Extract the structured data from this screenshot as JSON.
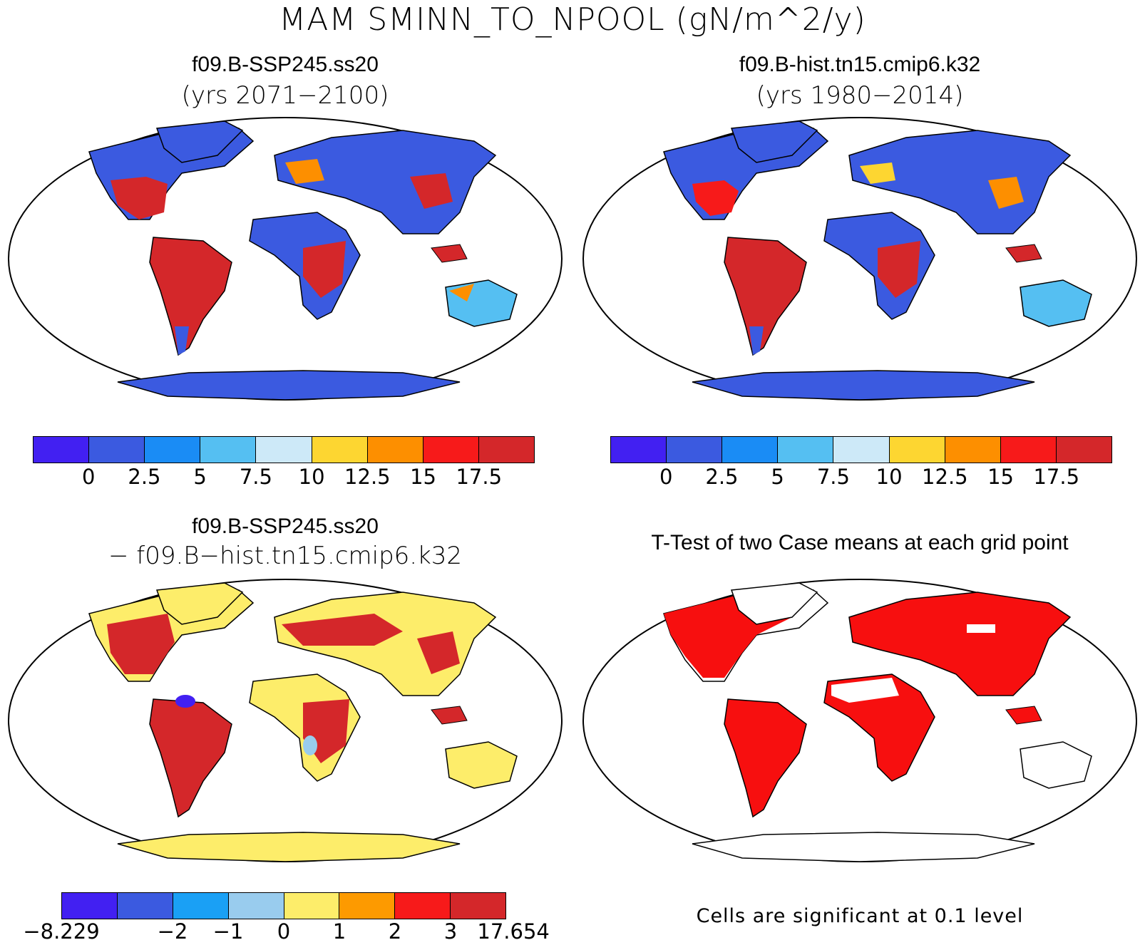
{
  "title": "MAM SMINN_TO_NPOOL (gN/m^2/y)",
  "panels": {
    "top_left": {
      "case": "f09.B-SSP245.ss20",
      "years": "(yrs 2071−2100)",
      "colorbar": {
        "colors": [
          "#4220f2",
          "#3b5ae0",
          "#1a8cf5",
          "#55bff2",
          "#cde9f8",
          "#fdd631",
          "#fd8f00",
          "#f71a1a",
          "#d4272a"
        ],
        "labels": [
          "0",
          "2.5",
          "5",
          "7.5",
          "10",
          "12.5",
          "15",
          "17.5"
        ]
      }
    },
    "top_right": {
      "case": "f09.B-hist.tn15.cmip6.k32",
      "years": "(yrs 1980−2014)",
      "colorbar": {
        "colors": [
          "#4220f2",
          "#3b5ae0",
          "#1a8cf5",
          "#55bff2",
          "#cde9f8",
          "#fdd631",
          "#fd8f00",
          "#f71a1a",
          "#d4272a"
        ],
        "labels": [
          "0",
          "2.5",
          "5",
          "7.5",
          "10",
          "12.5",
          "15",
          "17.5"
        ]
      }
    },
    "bottom_left": {
      "case": "f09.B-SSP245.ss20",
      "subtitle": "− f09.B−hist.tn15.cmip6.k32",
      "colorbar": {
        "colors": [
          "#4220f2",
          "#3b5ae0",
          "#1aa0f5",
          "#99ccee",
          "#fded6a",
          "#fd9a00",
          "#f71a1a",
          "#d4272a"
        ],
        "labels": [
          "−8.229",
          "−2",
          "−1",
          "0",
          "1",
          "2",
          "3",
          "17.654"
        ]
      }
    },
    "bottom_right": {
      "title": "T-Test of two Case means at each grid point",
      "note": "Cells are significant at 0.1 level",
      "significant_color": "#f70f0f"
    }
  }
}
